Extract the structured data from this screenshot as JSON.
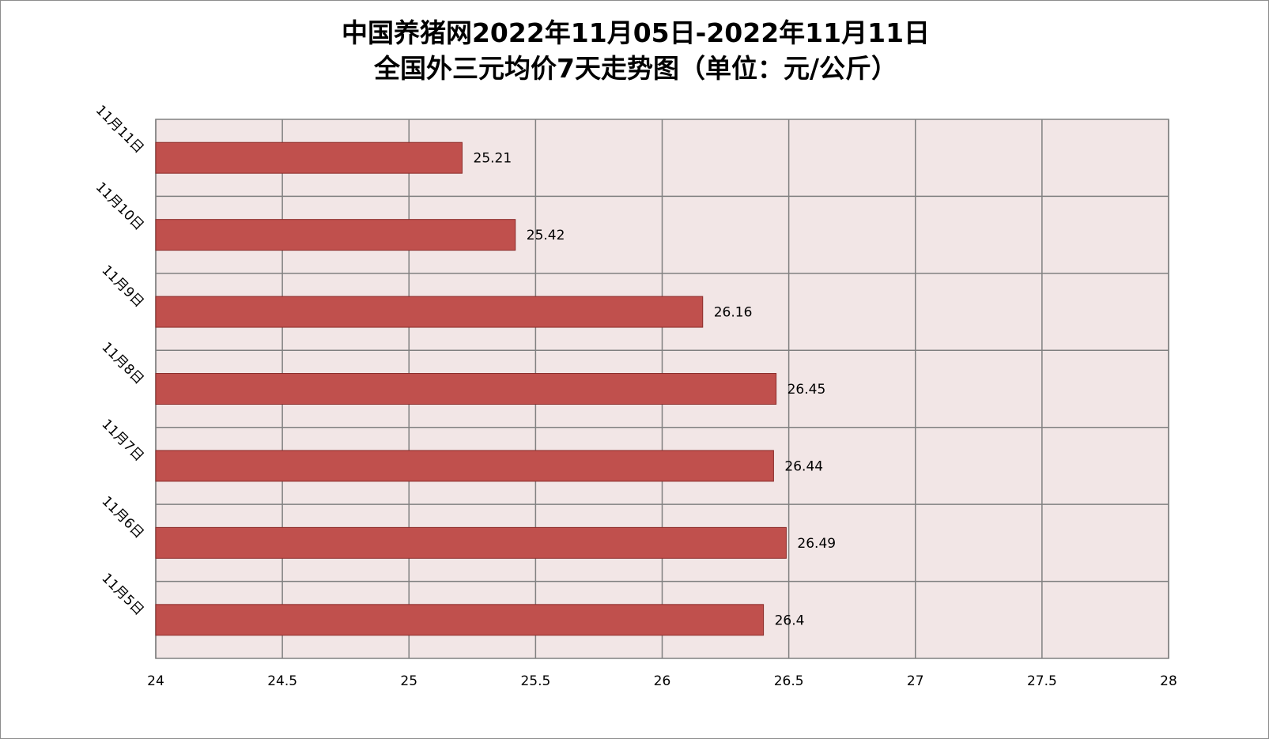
{
  "chart_data": {
    "type": "bar",
    "orientation": "horizontal",
    "title": "中国养猪网2022年11月05日-2022年11月11日",
    "subtitle": "全国外三元均价7天走势图（单位：元/公斤）",
    "categories": [
      "11月11日",
      "11月10日",
      "11月9日",
      "11月8日",
      "11月7日",
      "11月6日",
      "11月5日"
    ],
    "series": [
      {
        "values": [
          25.21,
          25.42,
          26.16,
          26.45,
          26.44,
          26.49,
          26.4
        ]
      }
    ],
    "data_labels": [
      "25.21",
      "25.42",
      "26.16",
      "26.45",
      "26.44",
      "26.49",
      "26.4"
    ],
    "x_ticks": [
      "24",
      "24.5",
      "25",
      "25.5",
      "26",
      "26.5",
      "27",
      "27.5",
      "28"
    ],
    "xlim": [
      24,
      28
    ],
    "xlabel": "",
    "ylabel": "",
    "grid": true,
    "legend": "none",
    "colors": {
      "bar_fill": "#c0504d",
      "bar_stroke": "#8b2c2a",
      "plot_bg": "#f2e6e6",
      "grid": "#808080"
    }
  }
}
